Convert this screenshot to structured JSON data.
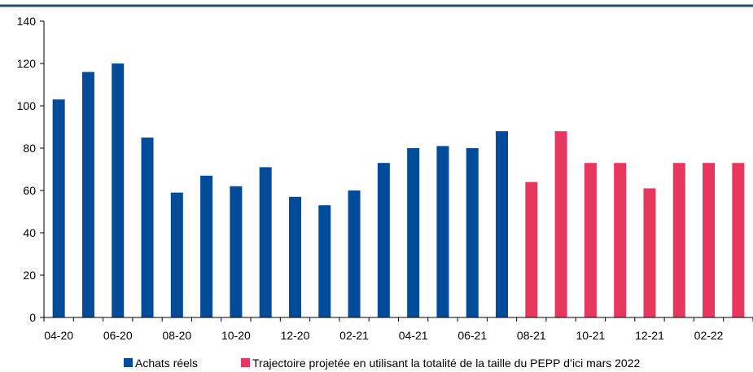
{
  "chart_data": {
    "type": "bar",
    "title": "",
    "xlabel": "",
    "ylabel": "",
    "ylim": [
      0,
      140
    ],
    "yticks": [
      0,
      20,
      40,
      60,
      80,
      100,
      120,
      140
    ],
    "grid": false,
    "legend_position": "bottom",
    "categories": [
      "04-20",
      "05-20",
      "06-20",
      "07-20",
      "08-20",
      "09-20",
      "10-20",
      "11-20",
      "12-20",
      "01-21",
      "02-21",
      "03-21",
      "04-21",
      "05-21",
      "06-21",
      "07-21",
      "08-21",
      "09-21",
      "10-21",
      "11-21",
      "12-21",
      "01-22",
      "02-22",
      "03-22"
    ],
    "x_tick_labels": [
      "04-20",
      "06-20",
      "08-20",
      "10-20",
      "12-20",
      "02-21",
      "04-21",
      "06-21",
      "08-21",
      "10-21",
      "12-21",
      "02-22"
    ],
    "series": [
      {
        "name": "Achats réels",
        "color": "#004b9a",
        "values": [
          103,
          116,
          120,
          85,
          59,
          67,
          62,
          71,
          57,
          53,
          60,
          73,
          80,
          81,
          80,
          88,
          null,
          null,
          null,
          null,
          null,
          null,
          null,
          null
        ]
      },
      {
        "name": "Trajectoire projetée en utilisant la totalité de la taille du PEPP d’ici mars 2022",
        "color": "#e8375f",
        "values": [
          null,
          null,
          null,
          null,
          null,
          null,
          null,
          null,
          null,
          null,
          null,
          null,
          null,
          null,
          null,
          null,
          64,
          88,
          73,
          73,
          61,
          73,
          73,
          73
        ]
      }
    ]
  }
}
